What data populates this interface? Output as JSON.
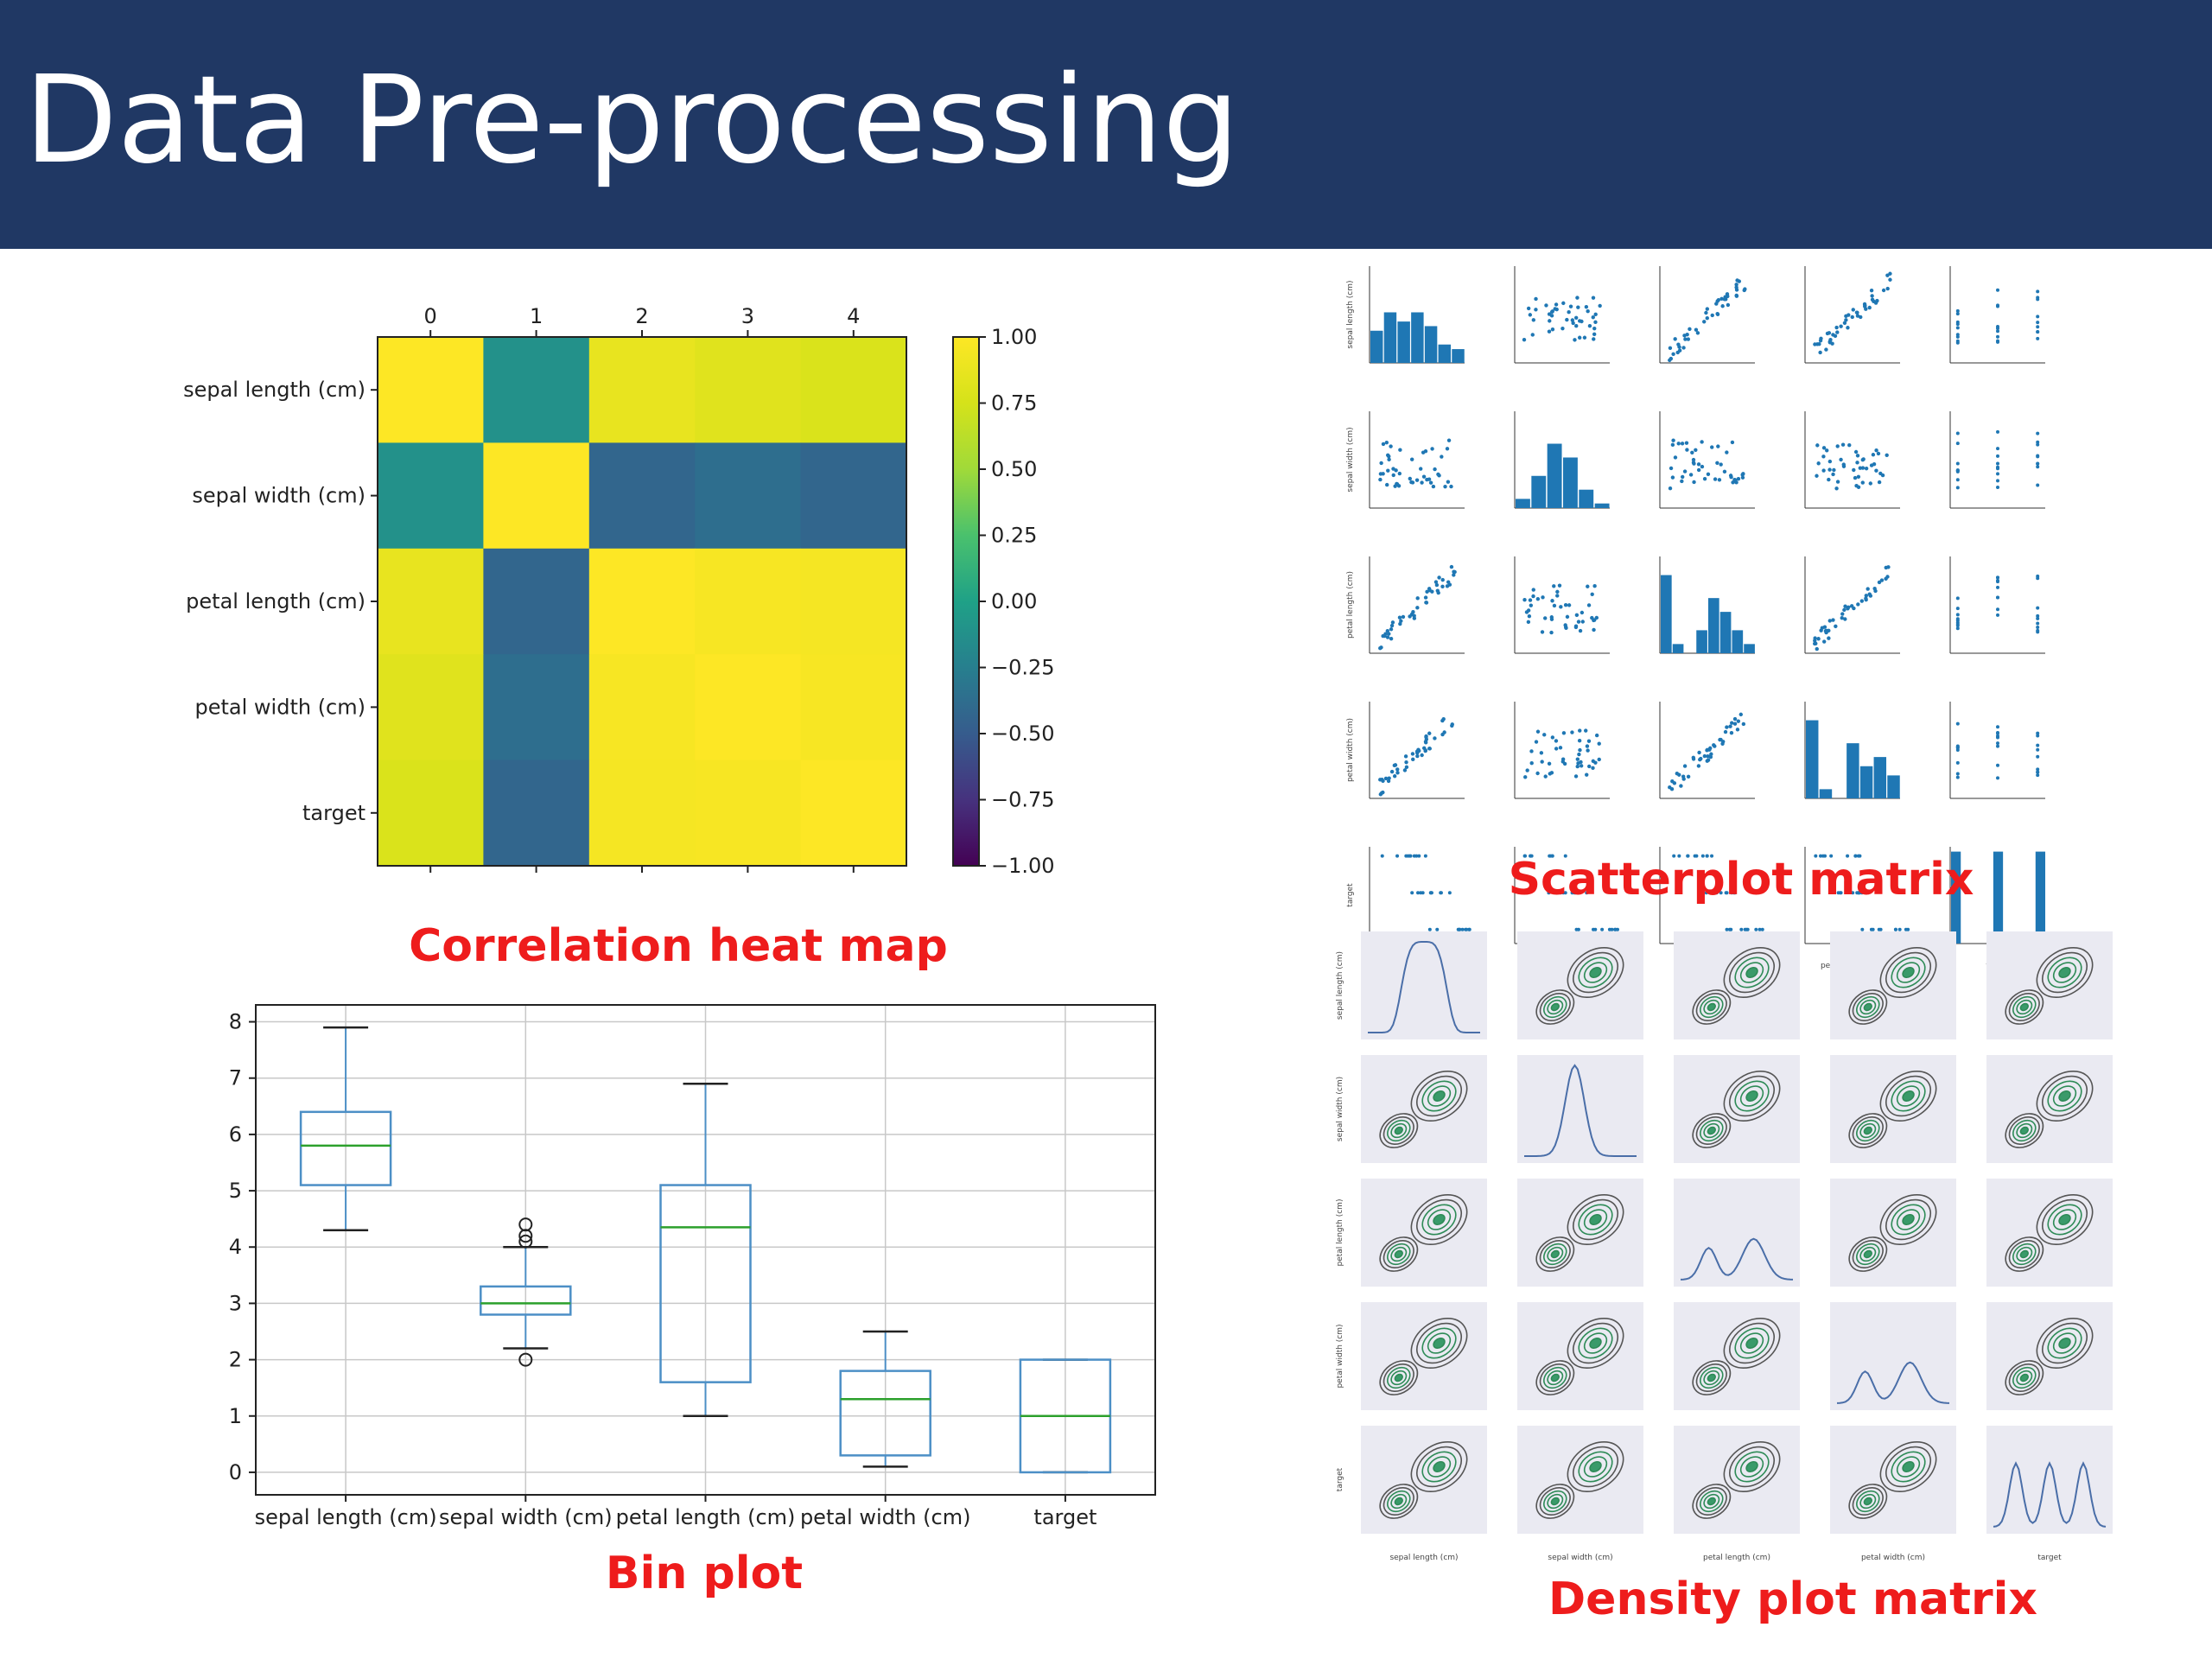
{
  "slide": {
    "title": "Data Pre-processing",
    "accent_color": "#203864",
    "caption_color": "#ee1c1c"
  },
  "chart_data": [
    {
      "type": "heatmap",
      "title": "",
      "caption": "Correlation heat map",
      "x_tick_labels": [
        "0",
        "1",
        "2",
        "3",
        "4"
      ],
      "y_tick_labels": [
        "sepal length (cm)",
        "sepal width (cm)",
        "petal length (cm)",
        "petal width (cm)",
        "target"
      ],
      "matrix": [
        [
          1.0,
          -0.12,
          0.87,
          0.82,
          0.78
        ],
        [
          -0.12,
          1.0,
          -0.43,
          -0.37,
          -0.43
        ],
        [
          0.87,
          -0.43,
          1.0,
          0.96,
          0.95
        ],
        [
          0.82,
          -0.37,
          0.96,
          1.0,
          0.96
        ],
        [
          0.78,
          -0.43,
          0.95,
          0.96,
          1.0
        ]
      ],
      "colorbar": {
        "range": [
          -1.0,
          1.0
        ],
        "ticks": [
          "1.00",
          "0.75",
          "0.50",
          "0.25",
          "0.00",
          "−0.25",
          "−0.50",
          "−0.75",
          "−1.00"
        ],
        "tick_values": [
          1.0,
          0.75,
          0.5,
          0.25,
          0.0,
          -0.25,
          -0.5,
          -0.75,
          -1.0
        ],
        "colormap": "viridis"
      }
    },
    {
      "type": "box",
      "title": "",
      "caption": "Bin plot",
      "categories": [
        "sepal length (cm)",
        "sepal width (cm)",
        "petal length (cm)",
        "petal width (cm)",
        "target"
      ],
      "ylim": [
        -0.4,
        8.3
      ],
      "y_ticks": [
        0,
        1,
        2,
        3,
        4,
        5,
        6,
        7,
        8
      ],
      "grid": true,
      "boxes": [
        {
          "whisker_low": 4.3,
          "q1": 5.1,
          "median": 5.8,
          "q3": 6.4,
          "whisker_high": 7.9,
          "outliers": []
        },
        {
          "whisker_low": 2.2,
          "q1": 2.8,
          "median": 3.0,
          "q3": 3.3,
          "whisker_high": 4.0,
          "outliers": [
            4.4,
            4.2,
            4.1,
            2.0
          ]
        },
        {
          "whisker_low": 1.0,
          "q1": 1.6,
          "median": 4.35,
          "q3": 5.1,
          "whisker_high": 6.9,
          "outliers": []
        },
        {
          "whisker_low": 0.1,
          "q1": 0.3,
          "median": 1.3,
          "q3": 1.8,
          "whisker_high": 2.5,
          "outliers": []
        },
        {
          "whisker_low": 0.0,
          "q1": 0.0,
          "median": 1.0,
          "q3": 2.0,
          "whisker_high": 2.0,
          "outliers": []
        }
      ],
      "box_color": "#4c8fc6",
      "median_color": "#2ca02c"
    },
    {
      "type": "scatter",
      "title": "",
      "caption": "Scatterplot matrix",
      "variables": [
        "sepal length (cm)",
        "sepal width (cm)",
        "petal length (cm)",
        "petal width (cm)",
        "target"
      ],
      "axis_labels": [
        "sepal length (cm)",
        "sepal width (cm)",
        "petal length (cm)",
        "petal width (cm)",
        "target"
      ],
      "diagonal": "histogram",
      "point_color": "#1f77b4"
    },
    {
      "type": "scatter",
      "title": "",
      "caption": "Density plot matrix",
      "variables": [
        "sepal length (cm)",
        "sepal width (cm)",
        "petal length (cm)",
        "petal width (cm)",
        "target"
      ],
      "axis_labels": [
        "sepal length (cm)",
        "sepal width (cm)",
        "petal length (cm)",
        "petal width (cm)",
        "target"
      ],
      "diagonal": "kde",
      "off_diagonal": "kde-contour",
      "contour_color": "#2e8b57",
      "panel_background": "#eaeaf2"
    }
  ]
}
